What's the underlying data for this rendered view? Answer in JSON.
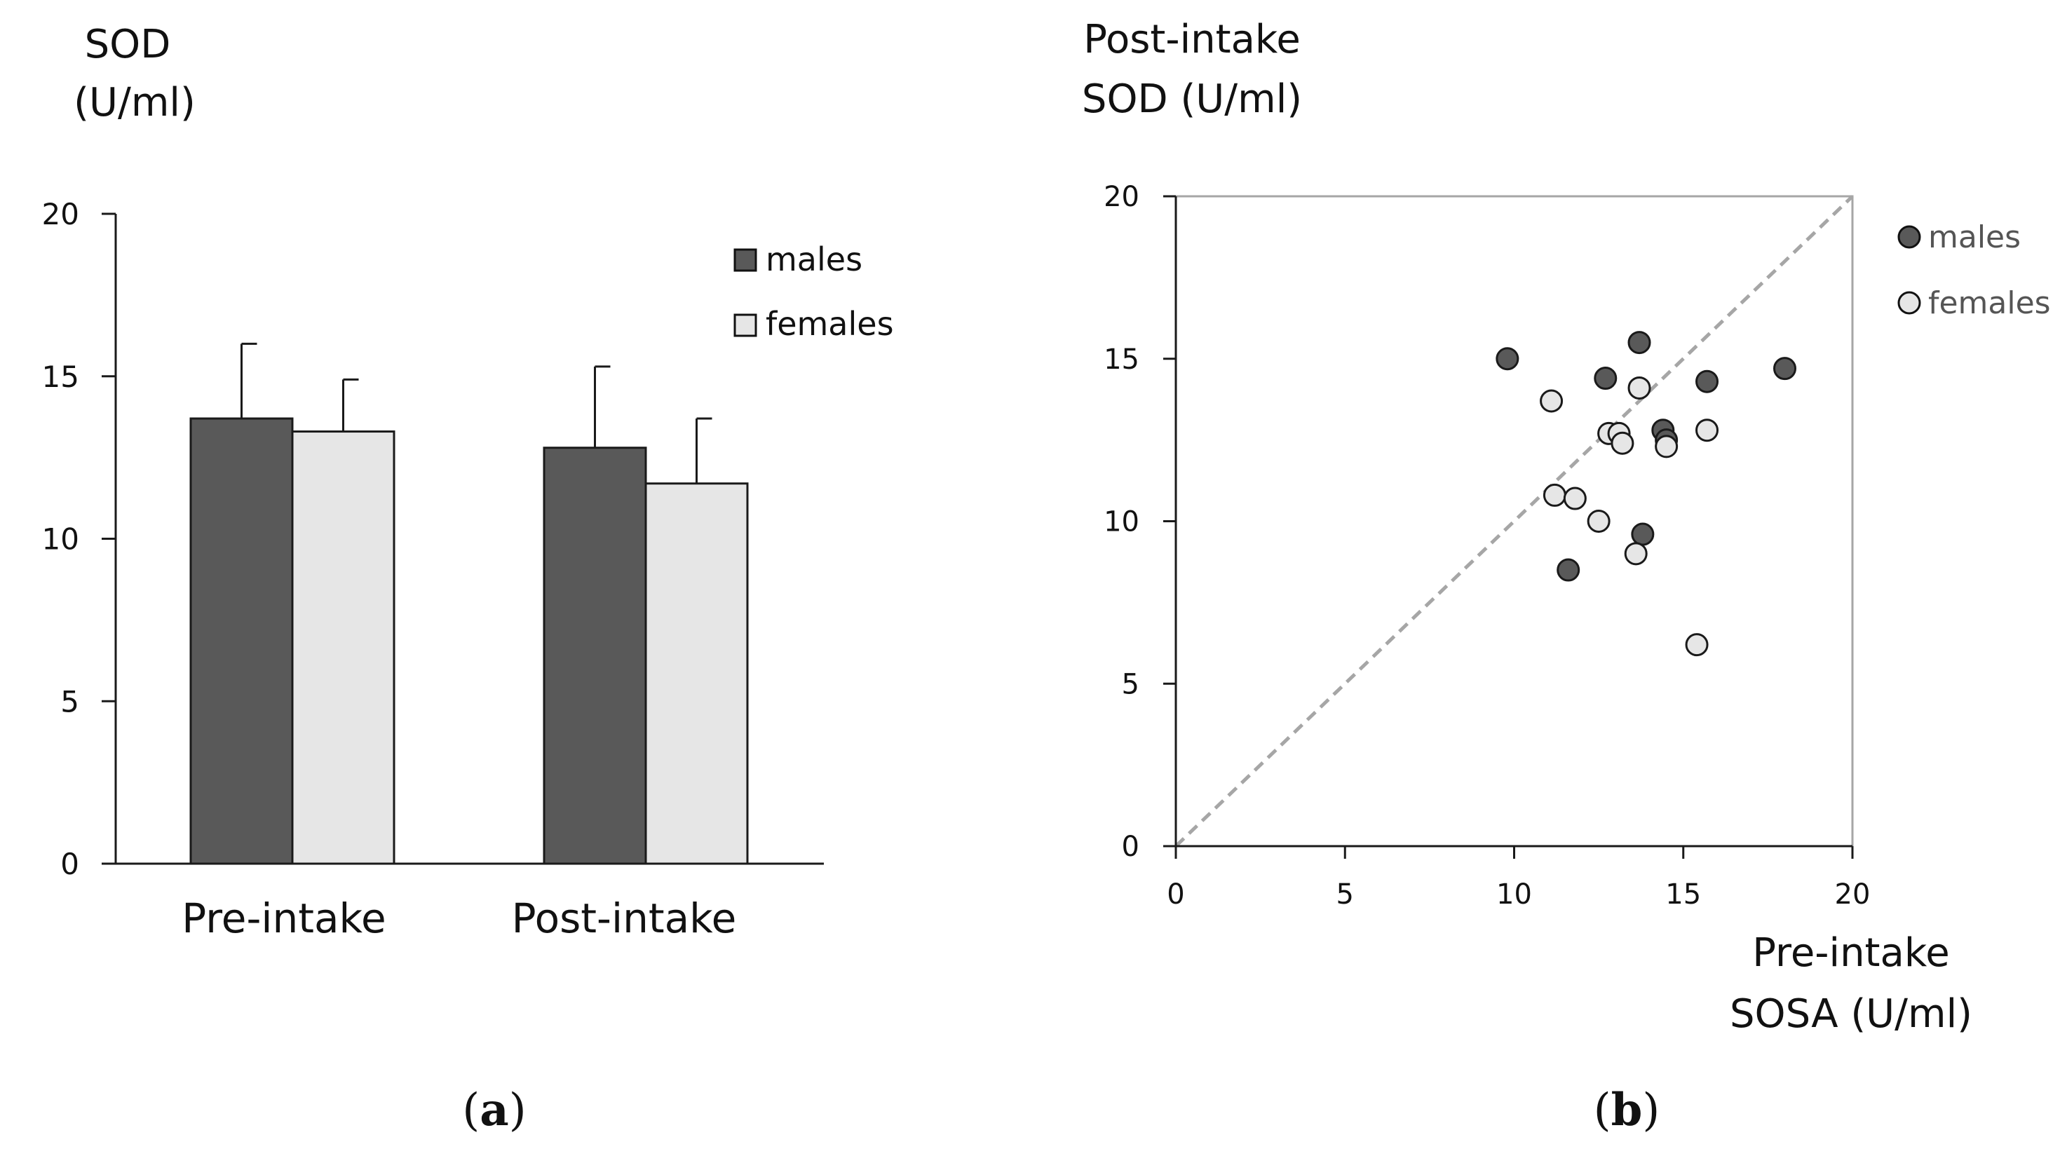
{
  "colors": {
    "males": "#595959",
    "females": "#e6e6e6",
    "axis": "#1a1a1a",
    "frame": "#a6a6a6",
    "diagonal": "#a6a6a6",
    "text": "#111111"
  },
  "panel_a": {
    "open": "(",
    "letter": "a",
    "close": ")"
  },
  "panel_b": {
    "open": "(",
    "letter": "b",
    "close": ")"
  },
  "chart_data": [
    {
      "type": "bar",
      "title_line1": "SOD",
      "title_line2": "(U/ml)",
      "categories": [
        "Pre-intake",
        "Post-intake"
      ],
      "series": [
        {
          "name": "males",
          "values": [
            13.7,
            12.8
          ],
          "error_upper": [
            2.3,
            2.5
          ]
        },
        {
          "name": "females",
          "values": [
            13.3,
            11.7
          ],
          "error_upper": [
            1.6,
            2.0
          ]
        }
      ],
      "ylim": [
        0,
        20
      ],
      "yticks": [
        0,
        5,
        10,
        15,
        20
      ],
      "legend_position": "top-right"
    },
    {
      "type": "scatter",
      "ylabel_line1": "Post-intake",
      "ylabel_line2": "SOD (U/ml)",
      "xlabel_line1": "Pre-intake",
      "xlabel_line2": "SOSA (U/ml)",
      "xlim": [
        0,
        20
      ],
      "ylim": [
        0,
        20
      ],
      "xticks": [
        0,
        5,
        10,
        15,
        20
      ],
      "yticks": [
        0,
        5,
        10,
        15,
        20
      ],
      "identity_line": true,
      "legend_position": "top-right",
      "series": [
        {
          "name": "males",
          "points": [
            [
              9.8,
              15.0
            ],
            [
              11.6,
              8.5
            ],
            [
              12.7,
              14.4
            ],
            [
              13.7,
              15.5
            ],
            [
              13.8,
              9.6
            ],
            [
              14.4,
              12.8
            ],
            [
              14.5,
              12.5
            ],
            [
              15.7,
              14.3
            ],
            [
              18.0,
              14.7
            ]
          ]
        },
        {
          "name": "females",
          "points": [
            [
              11.1,
              13.7
            ],
            [
              11.2,
              10.8
            ],
            [
              11.8,
              10.7
            ],
            [
              12.5,
              10.0
            ],
            [
              12.8,
              12.7
            ],
            [
              13.1,
              12.7
            ],
            [
              13.2,
              12.4
            ],
            [
              13.6,
              9.0
            ],
            [
              13.7,
              14.1
            ],
            [
              14.5,
              12.3
            ],
            [
              15.4,
              6.2
            ],
            [
              15.7,
              12.8
            ]
          ]
        }
      ]
    }
  ]
}
